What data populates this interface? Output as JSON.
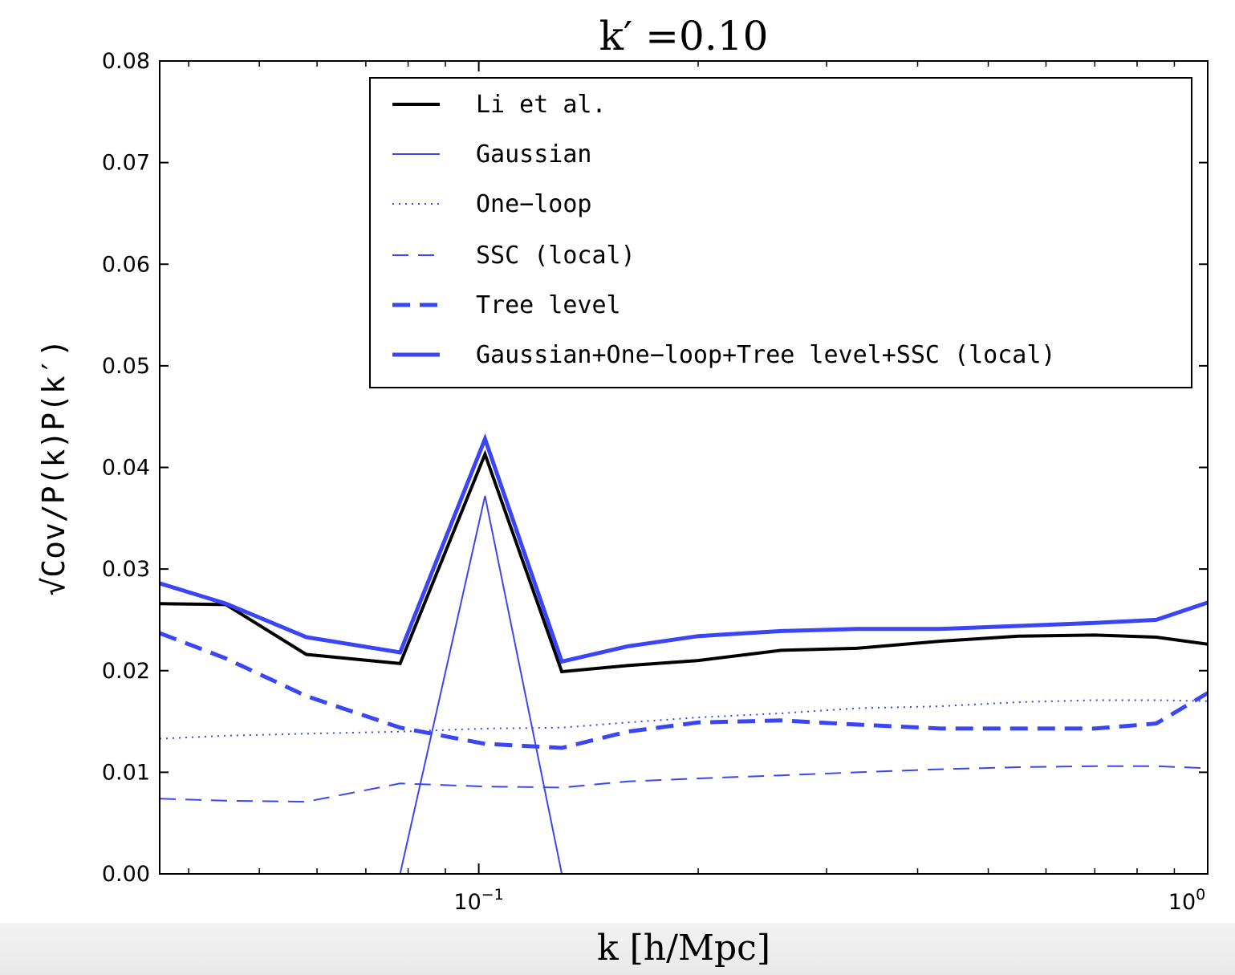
{
  "chart_data": {
    "type": "line",
    "title": "k′ =0.10",
    "xlabel": "k [h/Mpc]",
    "ylabel": "√Cov/P(k)P(k′)",
    "xscale": "log",
    "xlim": [
      0.0365,
      1.0
    ],
    "ylim": [
      0.0,
      0.08
    ],
    "xticks": [
      {
        "value": 0.1,
        "base": "10",
        "exp": "−1"
      },
      {
        "value": 1.0,
        "base": "10",
        "exp": "0"
      }
    ],
    "yticks": [
      "0.00",
      "0.01",
      "0.02",
      "0.03",
      "0.04",
      "0.05",
      "0.06",
      "0.07",
      "0.08"
    ],
    "legend_position": "top-right",
    "x": [
      0.0365,
      0.045,
      0.058,
      0.078,
      0.102,
      0.13,
      0.16,
      0.2,
      0.26,
      0.33,
      0.43,
      0.55,
      0.7,
      0.85,
      1.0
    ],
    "series": [
      {
        "name": "Li et al.",
        "color": "#000000",
        "width": 4,
        "dash": "",
        "values": [
          0.0266,
          0.0265,
          0.0216,
          0.0207,
          0.0413,
          0.0199,
          0.0205,
          0.021,
          0.022,
          0.0222,
          0.0229,
          0.0234,
          0.0235,
          0.0233,
          0.0226
        ]
      },
      {
        "name": "Gaussian",
        "color": "#3a46f5",
        "width": 2,
        "dash": "",
        "values": [
          null,
          null,
          null,
          0.0,
          0.0372,
          0.0,
          null,
          null,
          null,
          null,
          null,
          null,
          null,
          null,
          null
        ]
      },
      {
        "name": "One−loop",
        "color": "#3a46f5",
        "width": 2,
        "dash": "2 6",
        "values": [
          0.0133,
          0.0136,
          0.0138,
          0.014,
          0.0143,
          0.0144,
          0.0149,
          0.0154,
          0.0158,
          0.0163,
          0.0165,
          0.0169,
          0.0171,
          0.0171,
          0.017
        ]
      },
      {
        "name": "SSC (local)",
        "color": "#3a46f5",
        "width": 2,
        "dash": "20 12",
        "values": [
          0.0074,
          0.0072,
          0.0071,
          0.0089,
          0.0086,
          0.0085,
          0.0091,
          0.0094,
          0.0097,
          0.01,
          0.0103,
          0.0105,
          0.0106,
          0.0106,
          0.0104
        ]
      },
      {
        "name": "Tree level",
        "color": "#3a46f5",
        "width": 5,
        "dash": "22 12",
        "values": [
          0.0237,
          0.0212,
          0.0175,
          0.0144,
          0.0128,
          0.0124,
          0.014,
          0.0149,
          0.0151,
          0.0147,
          0.0143,
          0.0143,
          0.0143,
          0.0148,
          0.0178
        ]
      },
      {
        "name": "Gaussian+One−loop+Tree level+SSC (local)",
        "color": "#3a46f5",
        "width": 5,
        "dash": "",
        "values": [
          0.0286,
          0.0266,
          0.0233,
          0.0218,
          0.0428,
          0.0209,
          0.0224,
          0.0234,
          0.0239,
          0.0241,
          0.0241,
          0.0244,
          0.0247,
          0.025,
          0.0267
        ]
      }
    ]
  }
}
